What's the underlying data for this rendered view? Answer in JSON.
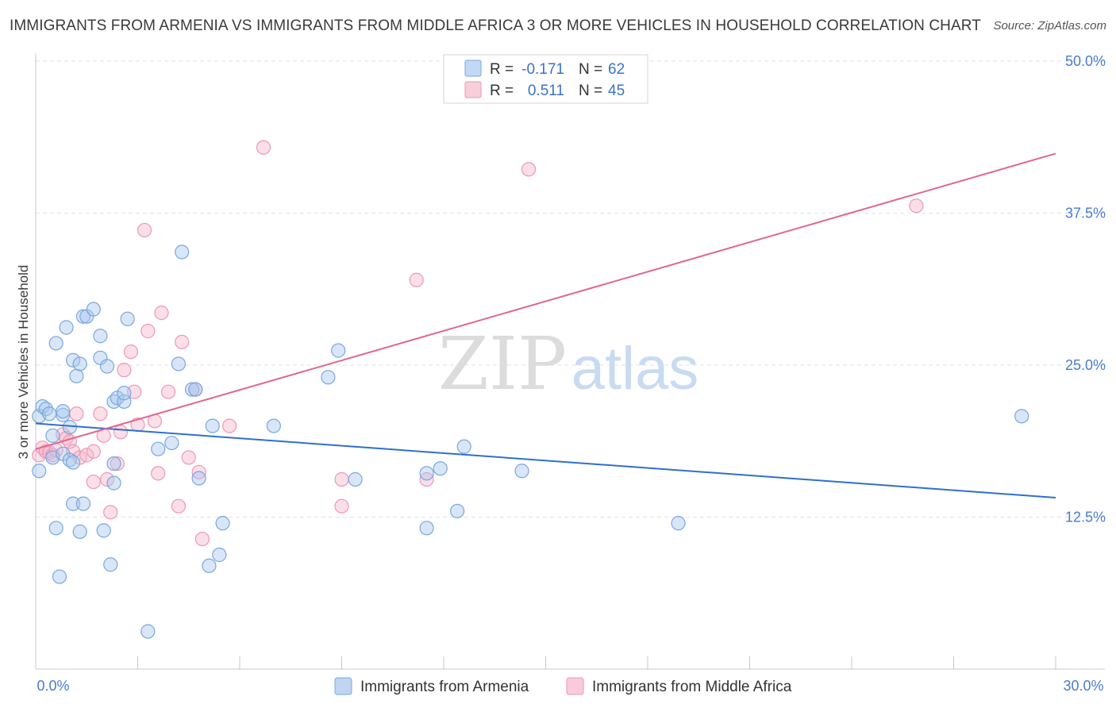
{
  "title": "IMMIGRANTS FROM ARMENIA VS IMMIGRANTS FROM MIDDLE AFRICA 3 OR MORE VEHICLES IN HOUSEHOLD CORRELATION CHART",
  "source": "Source: ZipAtlas.com",
  "watermark": {
    "zip": "ZIP",
    "atlas": "atlas"
  },
  "colors": {
    "blue_fill": "#a9c7ee",
    "blue_stroke": "#7aa7e0",
    "blue_line": "#2f6fcf",
    "pink_fill": "#f5b9cc",
    "pink_stroke": "#ee97b4",
    "pink_line": "#e0678f",
    "tick_label": "#4a7bd0",
    "grid": "#e2e2e2"
  },
  "stats_legend": {
    "rows": [
      {
        "r_label": "R =",
        "r_value": "-0.171",
        "n_label": "N =",
        "n_value": "62",
        "series": "blue"
      },
      {
        "r_label": "R =",
        "r_value": "0.511",
        "n_label": "N =",
        "n_value": "45",
        "series": "pink"
      }
    ]
  },
  "bottom_legend": [
    "Immigrants from Armenia",
    "Immigrants from Middle Africa"
  ],
  "chart_data": {
    "type": "scatter",
    "title": "IMMIGRANTS FROM ARMENIA VS IMMIGRANTS FROM MIDDLE AFRICA 3 OR MORE VEHICLES IN HOUSEHOLD CORRELATION CHART",
    "xlabel": "",
    "ylabel": "3 or more Vehicles in Household",
    "xlim": [
      0,
      30
    ],
    "ylim": [
      0,
      50
    ],
    "x_tick_labels": [
      {
        "value": 0,
        "label": "0.0%"
      },
      {
        "value": 30,
        "label": "30.0%"
      }
    ],
    "x_minor_ticks": [
      0,
      3,
      6,
      9,
      12,
      15,
      18,
      21,
      24,
      27,
      30
    ],
    "y_ticks": [
      {
        "value": 12.5,
        "label": "12.5%"
      },
      {
        "value": 25.0,
        "label": "25.0%"
      },
      {
        "value": 37.5,
        "label": "37.5%"
      },
      {
        "value": 50.0,
        "label": "50.0%"
      }
    ],
    "grid": true,
    "series": [
      {
        "name": "Immigrants from Armenia",
        "color": "blue",
        "R": -0.171,
        "N": 62,
        "trend": {
          "x": [
            0,
            30
          ],
          "y": [
            20.2,
            14.1
          ]
        },
        "points": [
          [
            0.1,
            16.3
          ],
          [
            0.1,
            20.8
          ],
          [
            0.2,
            21.6
          ],
          [
            0.3,
            21.4
          ],
          [
            0.4,
            21.0
          ],
          [
            0.5,
            19.2
          ],
          [
            0.5,
            17.4
          ],
          [
            0.6,
            26.8
          ],
          [
            0.6,
            11.6
          ],
          [
            0.8,
            20.9
          ],
          [
            0.8,
            17.7
          ],
          [
            0.7,
            7.6
          ],
          [
            0.8,
            21.2
          ],
          [
            0.9,
            28.1
          ],
          [
            1.0,
            19.9
          ],
          [
            1.0,
            17.2
          ],
          [
            1.1,
            17.0
          ],
          [
            1.1,
            13.6
          ],
          [
            1.1,
            25.4
          ],
          [
            1.2,
            24.1
          ],
          [
            1.3,
            25.1
          ],
          [
            1.3,
            11.3
          ],
          [
            1.4,
            13.6
          ],
          [
            1.4,
            29.0
          ],
          [
            1.5,
            29.0
          ],
          [
            1.7,
            29.6
          ],
          [
            1.9,
            25.6
          ],
          [
            1.9,
            27.4
          ],
          [
            2.0,
            11.4
          ],
          [
            2.1,
            24.9
          ],
          [
            2.2,
            8.6
          ],
          [
            2.3,
            22.0
          ],
          [
            2.3,
            16.9
          ],
          [
            2.3,
            15.3
          ],
          [
            2.4,
            22.3
          ],
          [
            2.6,
            22.0
          ],
          [
            2.6,
            22.7
          ],
          [
            2.7,
            28.8
          ],
          [
            3.3,
            3.1
          ],
          [
            3.6,
            18.1
          ],
          [
            4.0,
            18.6
          ],
          [
            4.2,
            25.1
          ],
          [
            4.3,
            34.3
          ],
          [
            4.6,
            23.0
          ],
          [
            4.7,
            23.0
          ],
          [
            4.8,
            15.7
          ],
          [
            5.1,
            8.5
          ],
          [
            5.2,
            20.0
          ],
          [
            5.4,
            9.4
          ],
          [
            5.5,
            12.0
          ],
          [
            7.0,
            20.0
          ],
          [
            8.6,
            24.0
          ],
          [
            8.9,
            26.2
          ],
          [
            9.4,
            15.6
          ],
          [
            11.5,
            16.1
          ],
          [
            11.5,
            11.6
          ],
          [
            11.9,
            16.5
          ],
          [
            12.4,
            13.0
          ],
          [
            12.6,
            18.3
          ],
          [
            14.3,
            16.3
          ],
          [
            18.9,
            12.0
          ],
          [
            29.0,
            20.8
          ]
        ]
      },
      {
        "name": "Immigrants from Middle Africa",
        "color": "pink",
        "R": 0.511,
        "N": 45,
        "trend": {
          "x": [
            0,
            30
          ],
          "y": [
            18.1,
            42.4
          ]
        },
        "points": [
          [
            0.1,
            17.6
          ],
          [
            0.2,
            18.2
          ],
          [
            0.3,
            17.9
          ],
          [
            0.4,
            17.8
          ],
          [
            0.5,
            17.6
          ],
          [
            0.6,
            18.0
          ],
          [
            0.8,
            19.3
          ],
          [
            0.9,
            19.0
          ],
          [
            1.0,
            18.7
          ],
          [
            1.1,
            17.9
          ],
          [
            1.3,
            17.4
          ],
          [
            1.2,
            21.0
          ],
          [
            1.5,
            17.6
          ],
          [
            1.7,
            15.4
          ],
          [
            1.7,
            17.9
          ],
          [
            1.9,
            21.0
          ],
          [
            2.0,
            19.2
          ],
          [
            2.1,
            15.6
          ],
          [
            2.2,
            12.9
          ],
          [
            2.4,
            16.9
          ],
          [
            2.5,
            19.5
          ],
          [
            2.6,
            24.6
          ],
          [
            2.8,
            26.1
          ],
          [
            2.9,
            22.8
          ],
          [
            3.0,
            20.1
          ],
          [
            3.2,
            36.1
          ],
          [
            3.3,
            27.8
          ],
          [
            3.5,
            20.4
          ],
          [
            3.6,
            16.1
          ],
          [
            3.7,
            29.3
          ],
          [
            3.9,
            22.8
          ],
          [
            4.2,
            13.4
          ],
          [
            4.3,
            26.9
          ],
          [
            4.5,
            17.4
          ],
          [
            4.7,
            23.0
          ],
          [
            4.8,
            16.2
          ],
          [
            4.9,
            10.7
          ],
          [
            5.7,
            20.0
          ],
          [
            6.7,
            42.9
          ],
          [
            9.0,
            15.6
          ],
          [
            9.0,
            13.4
          ],
          [
            11.2,
            32.0
          ],
          [
            11.5,
            15.6
          ],
          [
            14.5,
            41.1
          ],
          [
            25.9,
            38.1
          ]
        ]
      }
    ]
  }
}
